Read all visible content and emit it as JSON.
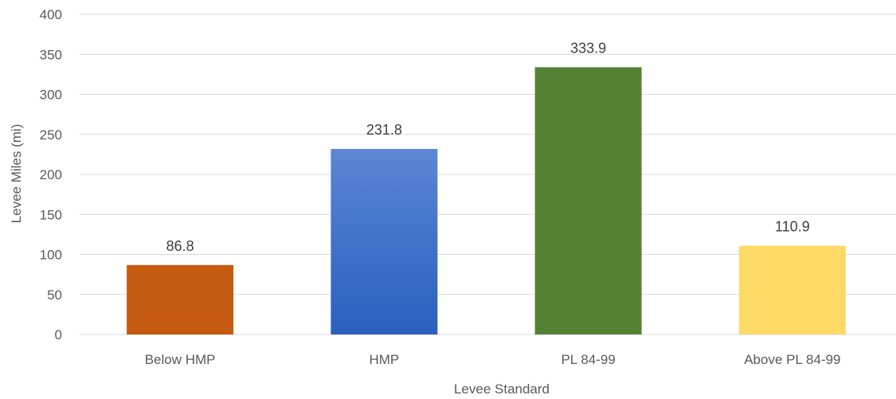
{
  "chart_data": {
    "type": "bar",
    "title": "",
    "xlabel": "Levee Standard",
    "ylabel": "Levee Miles (mi)",
    "categories": [
      "Below HMP",
      "HMP",
      "PL 84-99",
      "Above PL 84-99"
    ],
    "values": [
      86.8,
      231.8,
      333.9,
      110.9
    ],
    "data_labels": [
      "86.8",
      "231.8",
      "333.9",
      "110.9"
    ],
    "ylim": [
      0,
      400
    ],
    "yticks": [
      0,
      50,
      100,
      150,
      200,
      250,
      300,
      350,
      400
    ],
    "grid": true,
    "legend": "none",
    "bar_colors": [
      {
        "top": "#c55a11",
        "bottom": "#c55a11"
      },
      {
        "top": "#5b87d3",
        "bottom": "#2a5fbf"
      },
      {
        "top": "#548235",
        "bottom": "#548235"
      },
      {
        "top": "#ffd966",
        "bottom": "#ffd966"
      }
    ]
  }
}
